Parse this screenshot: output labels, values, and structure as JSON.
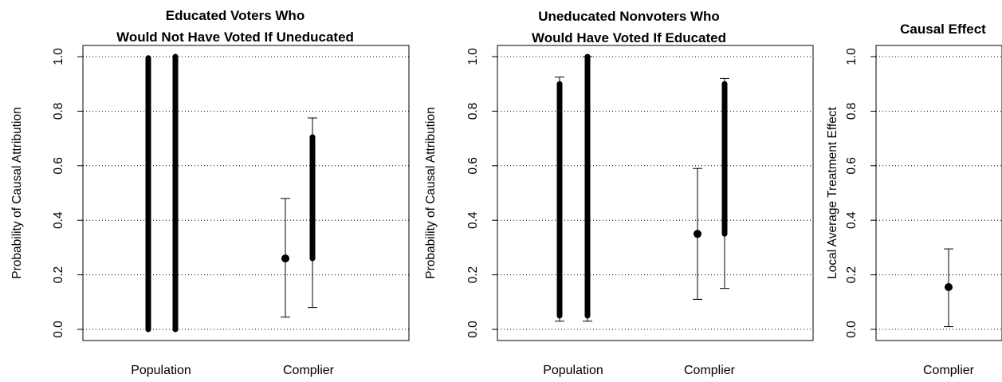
{
  "chart_data": [
    {
      "type": "interval",
      "title_lines": [
        "Educated Voters Who",
        "Would Not Have Voted If Uneducated"
      ],
      "ylabel": "Probability of Causal Attribution",
      "xlabel": "",
      "ylim": [
        0,
        1
      ],
      "yticks": [
        "0.0",
        "0.2",
        "0.4",
        "0.6",
        "0.8",
        "1.0"
      ],
      "grid": true,
      "categories": [
        "Population",
        "Complier"
      ],
      "items": [
        {
          "category": "Population",
          "kind": "bar",
          "low": 0.0,
          "high": 0.995
        },
        {
          "category": "Population",
          "kind": "bar",
          "low": 0.0,
          "high": 1.0
        },
        {
          "category": "Complier",
          "kind": "point",
          "value": 0.26,
          "ci_low": 0.045,
          "ci_high": 0.48
        },
        {
          "category": "Complier",
          "kind": "bar",
          "low": 0.26,
          "high": 0.705,
          "ci_low": 0.08,
          "ci_high": 0.775
        }
      ]
    },
    {
      "type": "interval",
      "title_lines": [
        "Uneducated Nonvoters Who",
        "Would Have Voted If Educated"
      ],
      "ylabel": "Probability of Causal Attribution",
      "xlabel": "",
      "ylim": [
        0,
        1
      ],
      "yticks": [
        "0.0",
        "0.2",
        "0.4",
        "0.6",
        "0.8",
        "1.0"
      ],
      "grid": true,
      "categories": [
        "Population",
        "Complier"
      ],
      "items": [
        {
          "category": "Population",
          "kind": "bar",
          "low": 0.05,
          "high": 0.9,
          "ci_low": 0.03,
          "ci_high": 0.925
        },
        {
          "category": "Population",
          "kind": "bar",
          "low": 0.05,
          "high": 1.0,
          "ci_low": 0.03,
          "ci_high": 1.0
        },
        {
          "category": "Complier",
          "kind": "point",
          "value": 0.35,
          "ci_low": 0.11,
          "ci_high": 0.59
        },
        {
          "category": "Complier",
          "kind": "bar",
          "low": 0.35,
          "high": 0.9,
          "ci_low": 0.15,
          "ci_high": 0.92
        }
      ]
    },
    {
      "type": "interval",
      "title_lines": [
        "Causal Effect"
      ],
      "ylabel": "Local Average Treatment Effect",
      "xlabel": "",
      "ylim": [
        0,
        1
      ],
      "yticks": [
        "0.0",
        "0.2",
        "0.4",
        "0.6",
        "0.8",
        "1.0"
      ],
      "grid": true,
      "categories": [
        "Complier"
      ],
      "items": [
        {
          "category": "Complier",
          "kind": "point",
          "value": 0.155,
          "ci_low": 0.01,
          "ci_high": 0.295
        }
      ]
    }
  ]
}
